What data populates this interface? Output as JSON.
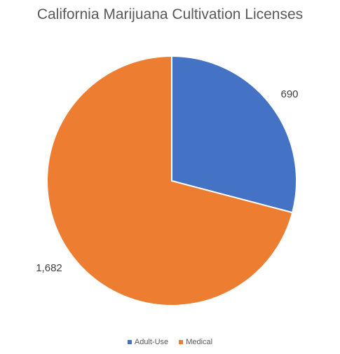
{
  "chart_data": {
    "type": "pie",
    "title": "California Marijuana Cultivation Licenses",
    "categories": [
      "Adult-Use",
      "Medical"
    ],
    "values": [
      690,
      1682
    ],
    "data_labels": [
      "690",
      "1,682"
    ],
    "colors": [
      "#4472C4",
      "#ED7D31"
    ],
    "legend_position": "bottom"
  }
}
